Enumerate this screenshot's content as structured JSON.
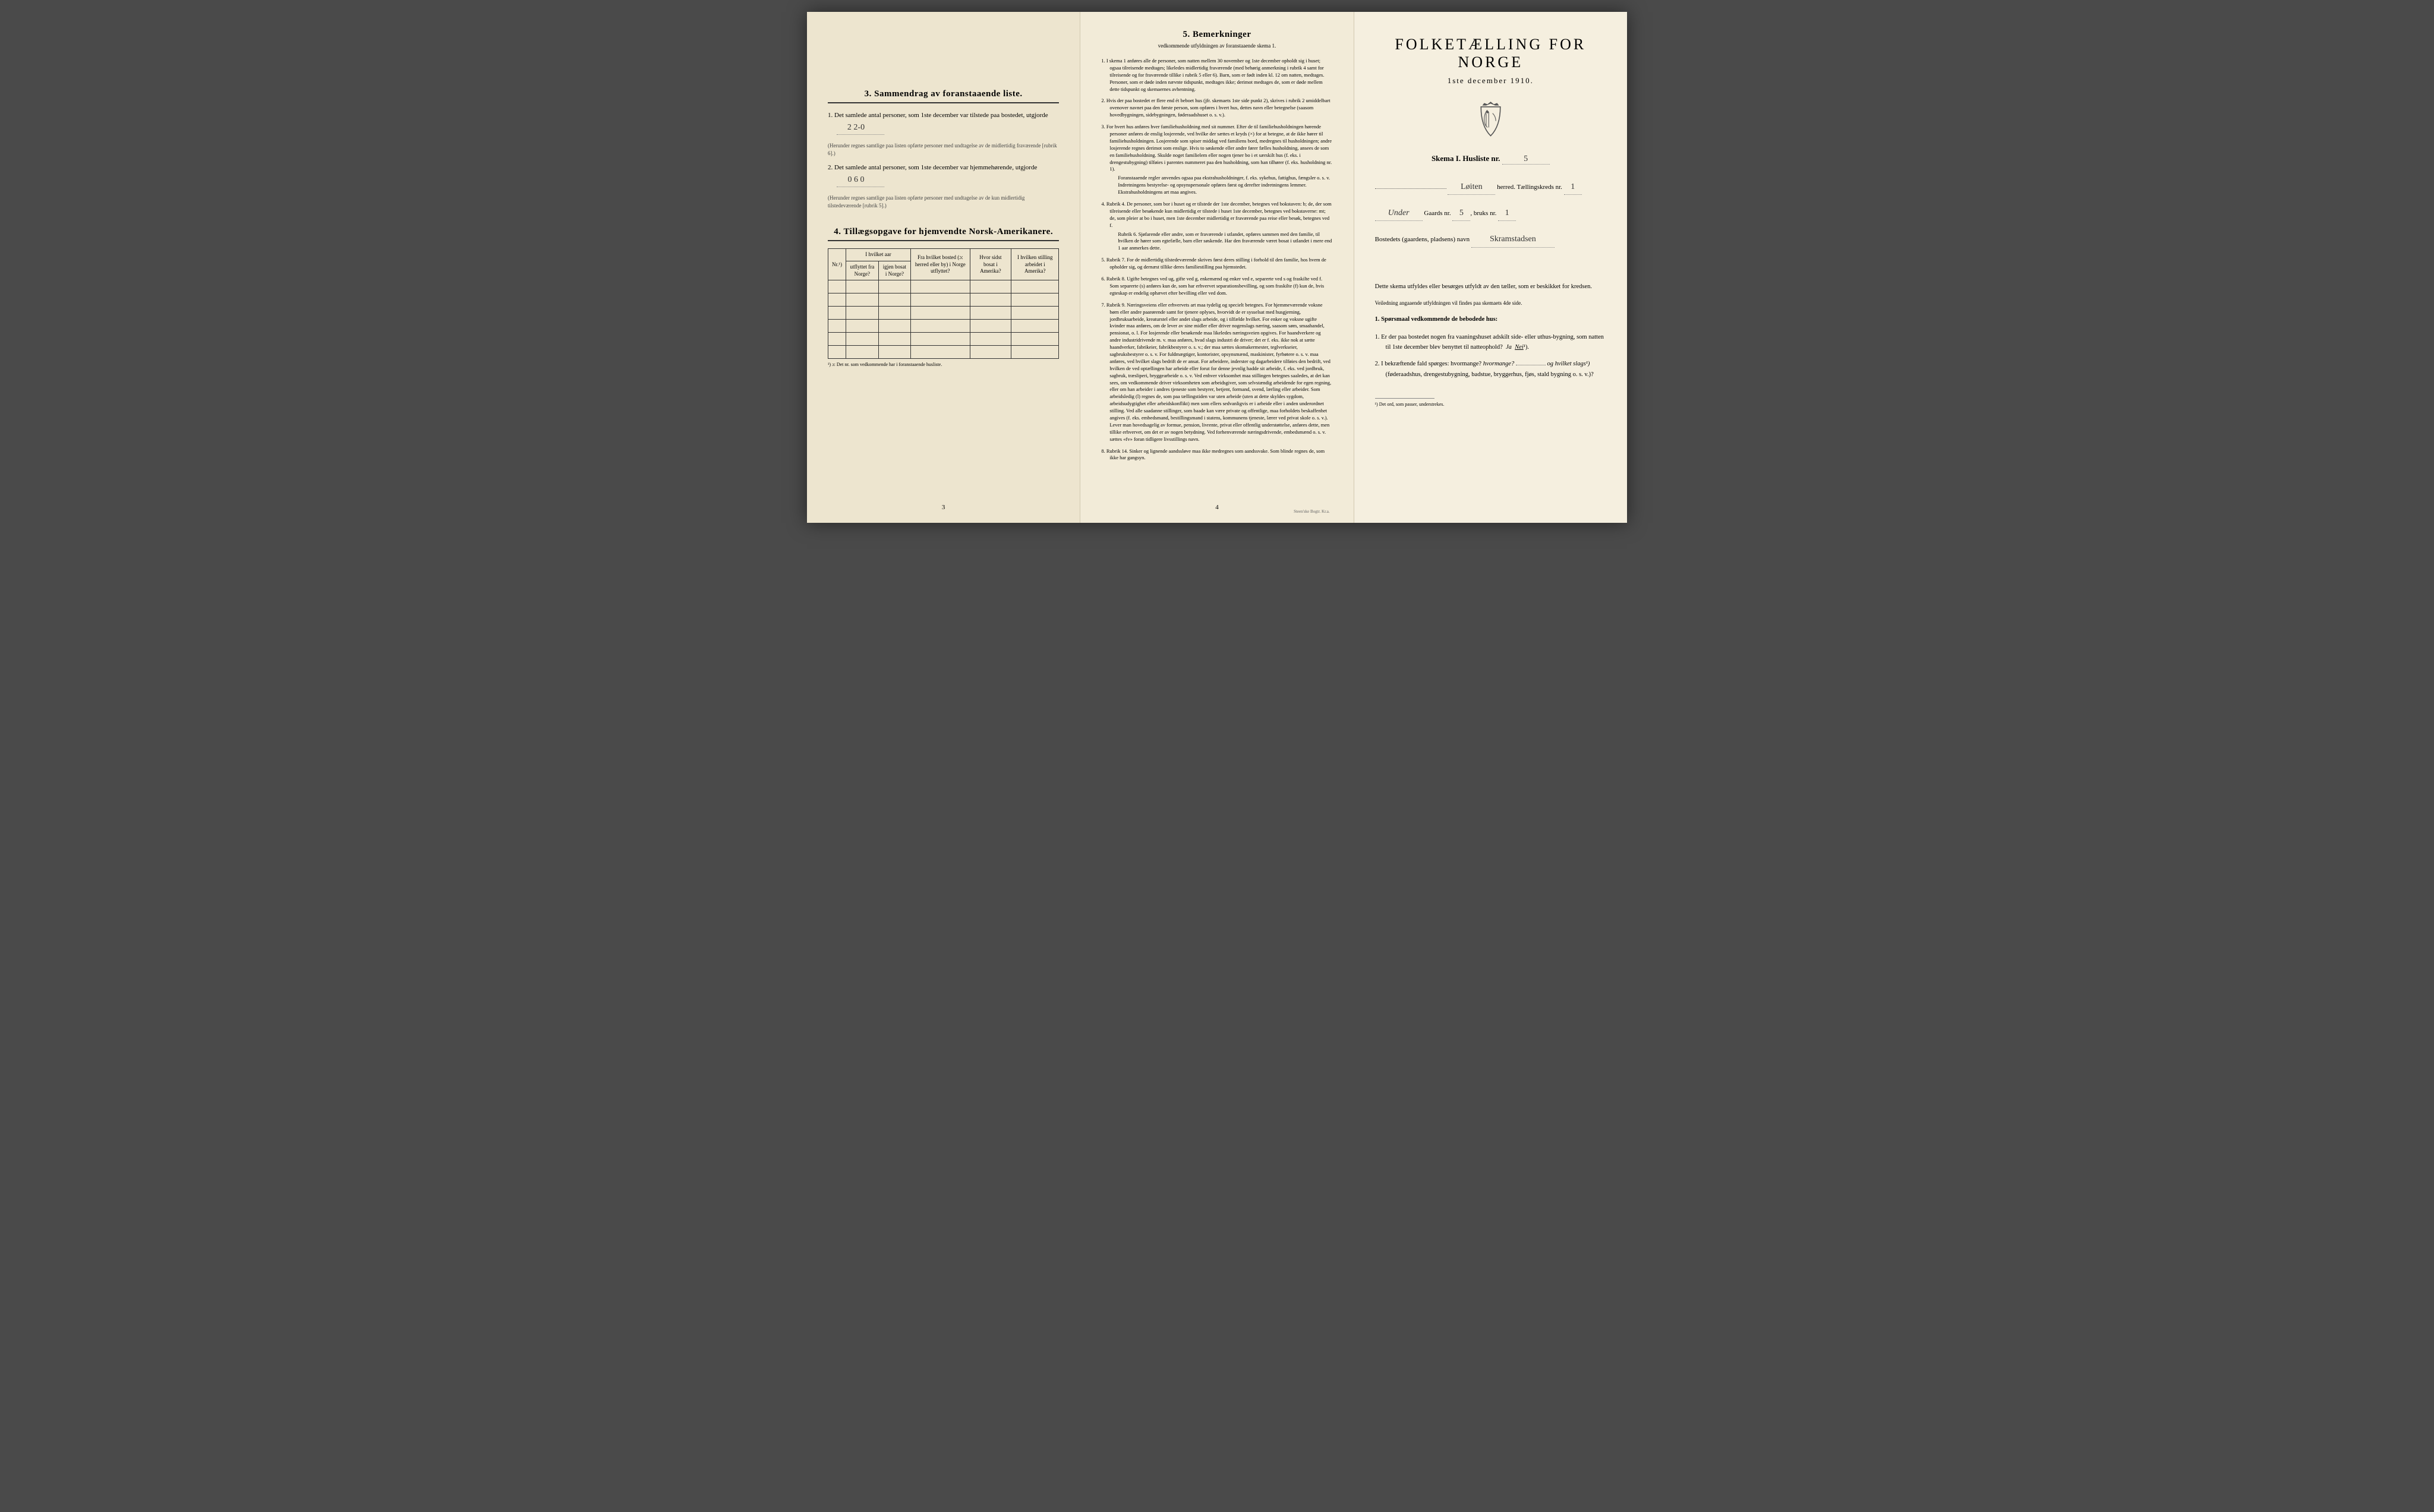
{
  "colors": {
    "paper_left": "#ede5cf",
    "paper_middle": "#f2ebd8",
    "paper_right": "#f5efdf",
    "background": "#4a4a4a",
    "text": "#1a1a1a",
    "dotted": "#666666"
  },
  "left": {
    "section3_title": "3.  Sammendrag av foranstaaende liste.",
    "item1": "1.  Det samlede antal personer, som 1ste december var tilstede paa bostedet, utgjorde",
    "item1_value": "2    2-0",
    "item1_note": "(Herunder regnes samtlige paa listen opførte personer med undtagelse av de midlertidig fraværende [rubrik 6].)",
    "item2": "2.  Det samlede antal personer, som 1ste december var hjemmehørende, utgjorde",
    "item2_value": "0   6 0",
    "item2_note": "(Herunder regnes samtlige paa listen opførte personer med undtagelse av de kun midlertidig tilstedeværende [rubrik 5].)",
    "section4_title": "4.  Tillægsopgave for hjemvendte Norsk-Amerikanere.",
    "table_headers": {
      "nr": "Nr.¹)",
      "col1": "I hvilket aar utflyttet fra Norge?",
      "col2": "I hvilket aar igjen bosat i Norge?",
      "col3": "Fra hvilket bosted (ɔ: herred eller by) i Norge utflyttet?",
      "col4": "Hvor sidst bosat i Amerika?",
      "col5": "I hvilken stilling arbeidet i Amerika?"
    },
    "table_footnote": "¹) ɔ: Det nr. som vedkommende har i foranstaaende husliste.",
    "page_num": "3"
  },
  "middle": {
    "section5_title": "5.  Bemerkninger",
    "section5_sub": "vedkommende utfyldningen av foranstaaende skema 1.",
    "items": [
      {
        "num": "1.",
        "text": "I skema 1 anføres alle de personer, som natten mellem 30 november og 1ste december opholdt sig i huset; ogsaa tilreisende medtages; likeledes midlertidig fraværende (med behørig anmerkning i rubrik 4 samt for tilreisende og for fraværende tillike i rubrik 5 eller 6). Barn, som er født inden kl. 12 om natten, medtages. Personer, som er døde inden nævnte tidspunkt, medtages ikke; derimot medtages de, som er døde mellem dette tidspunkt og skemaernes avhentning."
      },
      {
        "num": "2.",
        "text": "Hvis der paa bostedet er flere end ét beboet hus (jfr. skemaets 1ste side punkt 2), skrives i rubrik 2 umiddelbart ovenover navnet paa den første person, som opføres i hvert hus, dettes navn eller betegnelse (saasom hovedbygningen, sidebygningen, føderaadshuset o. s. v.)."
      },
      {
        "num": "3.",
        "text": "For hvert hus anføres hver familiehusholdning med sit nummer. Efter de til familiehusholdningen hørende personer anføres de enslig losjerende, ved hvilke der sættes et kryds (×) for at betegne, at de ikke hører til familiehusholdningen. Losjerende som spiser middag ved familiens bord, medregnes til husholdningen; andre losjerende regnes derimot som enslige. Hvis to søskende eller andre fører fælles husholdning, ansees de som en familiehusholdning. Skulde noget familielem eller nogen tjener bo i et særskilt hus (f. eks. i drengestubygning) tilføies i parentes nummeret paa den husholdning, som han tilhører (f. eks. husholdning nr. 1).",
        "sub": "Foranstaaende regler anvendes ogsaa paa ekstrahusholdninger, f. eks. sykehus, fattighus, fængsler o. s. v. Indretningens bestyrelse- og opsynspersonale opføres først og derefter indretningens lemmer. Ekstrahusholdningens art maa angives."
      },
      {
        "num": "4.",
        "text": "Rubrik 4. De personer, som bor i huset og er tilstede der 1ste december, betegnes ved bokstaven: b; de, der som tilreisende eller besøkende kun midlertidig er tilstede i huset 1ste december, betegnes ved bokstaverne: mt; de, som pleier at bo i huset, men 1ste december midlertidig er fraværende paa reise eller besøk, betegnes ved f.",
        "sub": "Rubrik 6. Sjøfarende eller andre, som er fraværende i utlandet, opføres sammen med den familie, til hvilken de hører som egtefælle, barn eller søskende. Har den fraværende været bosat i utlandet i mere end 1 aar anmerkes dette."
      },
      {
        "num": "5.",
        "text": "Rubrik 7. For de midlertidig tilstedeværende skrives først deres stilling i forhold til den familie, hos hvem de opholder sig, og dernæst tillike deres familiestilling paa hjemstedet."
      },
      {
        "num": "6.",
        "text": "Rubrik 8. Ugifte betegnes ved ug, gifte ved g, enkemænd og enker ved e, separerte ved s og fraskilte ved f. Som separerte (s) anføres kun de, som har erhvervet separationsbevilling, og som fraskilte (f) kun de, hvis egteskap er endelig ophævet efter bevilling eller ved dom."
      },
      {
        "num": "7.",
        "text": "Rubrik 9. Næringsveiens eller erhvervets art maa tydelig og specielt betegnes. For hjemmeværende voksne børn eller andre paarørende samt for tjenere oplyses, hvorvidt de er sysselsat med husgjerning, jordbruksarbeide, kreaturstel eller andet slags arbeide, og i tilfælde hvilket. For enker og voksne ugifte kvinder maa anføres, om de lever av sine midler eller driver nogenslags næring, saasom søm, smaahandel, pensionat, o. l. For losjerende eller besøkende maa likeledes næringsveien opgives. For haandverkere og andre industridrivende m. v. maa anføres, hvad slags industri de driver; det er f. eks. ikke nok at sætte haandverker, fabrikeier, fabrikbestyrer o. s. v.; der maa sættes skomakermester, teglverkseier, sagbruksbestyrer o. s. v. For fuldmægtiger, kontorister, opsynsmænd, maskinister, fyrbøtere o. s. v. maa anføres, ved hvilket slags bedrift de er ansat. For arbeidere, inderster og dagarbeidere tilføies den bedrift, ved hvilken de ved optællingen har arbeide eller forut for denne jevnlig hadde sit arbeide, f. eks. ved jordbruk, sagbruk, træsliperi, bryggearbeide o. s. v. Ved enhver virksomhet maa stillingen betegnes saaledes, at det kan sees, om vedkommende driver virksomheten som arbeidsgiver, som selvstændig arbeidende for egen regning, eller om han arbeider i andres tjeneste som bestyrer, betjent, formand, svend, lærling eller arbeider. Som arbeidsledig (l) regnes de, som paa tællingstiden var uten arbeide (uten at dette skyldes sygdom, arbeidsudygtighet eller arbeidskonflikt) men som ellers sedvanligvis er i arbeide eller i anden underordnet stilling. Ved alle saadanne stillinger, som baade kan være private og offentlige, maa forholdets beskaffenhet angives (f. eks. embedsmand, bestillingsmand i statens, kommunens tjeneste, lærer ved privat skole o. s. v.). Lever man hovedsagelig av formue, pension, livrente, privat eller offentlig understøttelse, anføres dette, men tillike erhvervet, om det er av nogen betydning. Ved forhenværende næringsdrivende, embedsmænd o. s. v. sættes «fv» foran tidligere livsstillings navn."
      },
      {
        "num": "8.",
        "text": "Rubrik 14. Sinker og lignende aandssløve maa ikke medregnes som aandssvake. Som blinde regnes de, som ikke har gangsyn."
      }
    ],
    "page_num": "4",
    "printer": "Steen'ske Bogtr. Kr.a."
  },
  "right": {
    "title": "FOLKETÆLLING FOR NORGE",
    "subtitle": "1ste december 1910.",
    "skema_label": "Skema I.  Husliste nr.",
    "skema_value": "5",
    "herred_label": "herred.  Tællingskreds nr.",
    "herred_value": "Løiten",
    "tellingskreds_value": "1",
    "gaards_label_pre": "Under",
    "gaards_label": "Gaards nr.",
    "gaards_value": "5",
    "bruks_label": "bruks nr.",
    "bruks_value": "1",
    "bosted_label": "Bostedets (gaardens, pladsens) navn",
    "bosted_value": "Skramstadsen",
    "paragraph1": "Dette skema utfyldes eller besørges utfyldt av den tæller, som er beskikket for kredsen.",
    "paragraph1_sub": "Veiledning angaaende utfyldningen vil findes paa skemaets 4de side.",
    "question_header": "1. Spørsmaal vedkommende de bebodede hus:",
    "q1": "1.  Er der paa bostedet nogen fra vaaningshuset adskilt side- eller uthus-bygning, som natten til 1ste december blev benyttet til natteophold?",
    "q1_ja": "Ja",
    "q1_nei": "Nei",
    "q1_note": "¹).",
    "q2": "2.  I bekræftende fald spørges: hvormange?",
    "q2_mid": "og hvilket slags¹)",
    "q2_end": "(føderaadshus, drengestubygning, badstue, bryggerhus, fjøs, stald bygning o. s. v.)?",
    "footnote": "¹) Det ord, som passer, understrekes."
  }
}
